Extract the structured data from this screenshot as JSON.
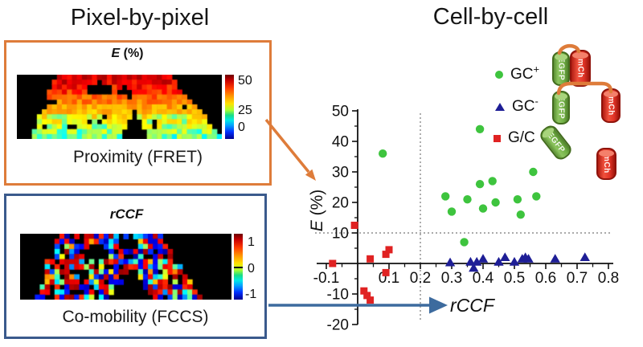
{
  "left_panel": {
    "title": "Pixel-by-pixel",
    "fret_box": {
      "map_title_main": "E",
      "map_title_rest": " (%)",
      "colorbar_labels": [
        "50",
        "25",
        "0"
      ],
      "caption": "Proximity (FRET)"
    },
    "fccs_box": {
      "map_title": "rCCF",
      "colorbar_labels": [
        "1",
        "0",
        "-1"
      ],
      "caption": "Co-mobility (FCCS)"
    }
  },
  "right_panel": {
    "title": "Cell-by-cell",
    "legend": [
      {
        "label": "GC",
        "sup": "+",
        "marker": "circle",
        "color": "#3EC43E"
      },
      {
        "label": "GC",
        "sup": "-",
        "marker": "triangle",
        "color": "#1E1E96"
      },
      {
        "label": "G/C",
        "sup": "",
        "marker": "square",
        "color": "#E02222"
      }
    ],
    "constructs": {
      "egfp_label": "EGFP",
      "mch_label": "mCh"
    }
  },
  "colors": {
    "orange_accent": "#DE7C3A",
    "blue_accent": "#3A5A8C",
    "arrow_blue": "#3D6B9E",
    "gc_plus_green": "#3EC43E",
    "gc_minus_navy": "#1E1E96",
    "gc_mix_red": "#E02222",
    "egfp_green": "#7CB648",
    "mch_red": "#E8251F"
  },
  "chart_data": {
    "type": "scatter",
    "title": "Cell-by-cell",
    "xlabel": "rCCF",
    "ylabel": "E (%)",
    "ylabel_parts": [
      "E",
      " (%)"
    ],
    "xlim": [
      -0.13,
      0.82
    ],
    "ylim": [
      -20,
      50
    ],
    "grid": "off",
    "legend_position": "upper-right",
    "x_ticks": [
      -0.1,
      0.1,
      0.2,
      0.3,
      0.4,
      0.5,
      0.6,
      0.7,
      0.8
    ],
    "x_tick_labels": [
      "-0.1",
      "0.1",
      "0.2",
      "0.3",
      "0.4",
      "0.5",
      "0.6",
      "0.7",
      "0.8"
    ],
    "x_minor_ticks": [
      -0.05,
      0.05,
      0.15,
      0.25,
      0.35,
      0.45,
      0.55,
      0.65,
      0.75
    ],
    "y_ticks": [
      50,
      40,
      30,
      20,
      10,
      -10,
      -20
    ],
    "y_tick_labels": [
      "50",
      "40",
      "30",
      "20",
      "10",
      "-10",
      "-20"
    ],
    "y_minor_ticks": [
      45,
      35,
      25,
      15,
      5,
      -5,
      -15
    ],
    "reference_lines": [
      {
        "axis": "y",
        "value": 10,
        "style": "dotted"
      },
      {
        "axis": "x",
        "value": 0.2,
        "style": "dotted"
      }
    ],
    "series": [
      {
        "name": "GC+",
        "marker": "circle",
        "color": "#3EC43E",
        "points": [
          [
            0.08,
            36
          ],
          [
            0.39,
            44
          ],
          [
            0.56,
            30
          ],
          [
            0.39,
            26
          ],
          [
            0.43,
            27
          ],
          [
            0.28,
            22
          ],
          [
            0.35,
            21
          ],
          [
            0.44,
            20
          ],
          [
            0.51,
            21
          ],
          [
            0.57,
            22
          ],
          [
            0.3,
            17
          ],
          [
            0.4,
            18
          ],
          [
            0.52,
            16
          ],
          [
            0.34,
            7
          ]
        ]
      },
      {
        "name": "GC-",
        "marker": "triangle",
        "color": "#1E1E96",
        "points": [
          [
            0.295,
            0.3
          ],
          [
            0.36,
            0.5
          ],
          [
            0.37,
            -1.5
          ],
          [
            0.38,
            0.5
          ],
          [
            0.4,
            1.5
          ],
          [
            0.45,
            0.5
          ],
          [
            0.47,
            2
          ],
          [
            0.5,
            0.5
          ],
          [
            0.525,
            1.5
          ],
          [
            0.535,
            2
          ],
          [
            0.545,
            1.5
          ],
          [
            0.63,
            1.5
          ],
          [
            0.725,
            2
          ]
        ]
      },
      {
        "name": "G/C",
        "marker": "square",
        "color": "#E02222",
        "points": [
          [
            -0.08,
            0
          ],
          [
            -0.01,
            12.5
          ],
          [
            0.04,
            1.5
          ],
          [
            0.09,
            3
          ],
          [
            0.1,
            4.5
          ],
          [
            0.09,
            -3
          ],
          [
            0.02,
            -9
          ],
          [
            0.03,
            -10.5
          ],
          [
            0.04,
            -12
          ]
        ]
      }
    ]
  },
  "heatmaps": {
    "fret": {
      "colormap": "jet",
      "seed": 11
    },
    "fccs": {
      "colormap": "jet",
      "seed": 42
    }
  }
}
